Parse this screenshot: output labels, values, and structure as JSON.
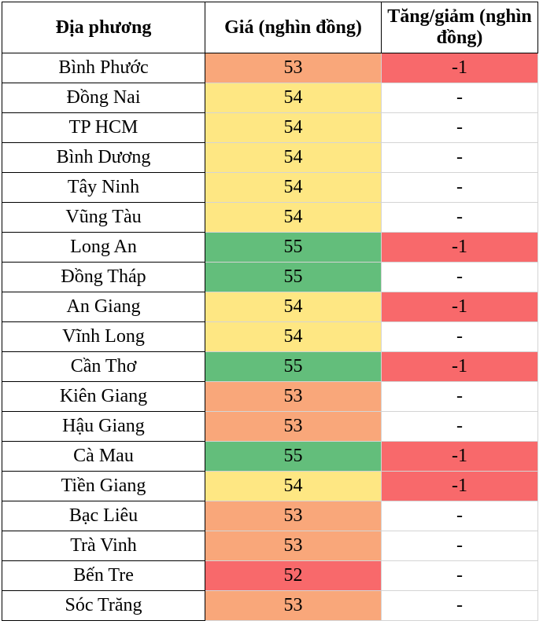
{
  "table": {
    "headers": [
      "Địa phương",
      "Giá (nghìn đồng)",
      "Tăng/giảm (nghìn đồng)"
    ],
    "rows": [
      {
        "region": "Bình Phước",
        "price": "53",
        "change": "-1"
      },
      {
        "region": "Đồng Nai",
        "price": "54",
        "change": "-"
      },
      {
        "region": "TP HCM",
        "price": "54",
        "change": "-"
      },
      {
        "region": "Bình Dương",
        "price": "54",
        "change": "-"
      },
      {
        "region": "Tây Ninh",
        "price": "54",
        "change": "-"
      },
      {
        "region": "Vũng Tàu",
        "price": "54",
        "change": "-"
      },
      {
        "region": "Long An",
        "price": "55",
        "change": "-1"
      },
      {
        "region": "Đồng Tháp",
        "price": "55",
        "change": "-"
      },
      {
        "region": "An Giang",
        "price": "54",
        "change": "-1"
      },
      {
        "region": "Vĩnh Long",
        "price": "54",
        "change": "-"
      },
      {
        "region": "Cần Thơ",
        "price": "55",
        "change": "-1"
      },
      {
        "region": "Kiên Giang",
        "price": "53",
        "change": "-"
      },
      {
        "region": "Hậu Giang",
        "price": "53",
        "change": "-"
      },
      {
        "region": "Cà Mau",
        "price": "55",
        "change": "-1"
      },
      {
        "region": "Tiền Giang",
        "price": "54",
        "change": "-1"
      },
      {
        "region": "Bạc Liêu",
        "price": "53",
        "change": "-"
      },
      {
        "region": "Trà Vinh",
        "price": "53",
        "change": "-"
      },
      {
        "region": "Bến Tre",
        "price": "52",
        "change": "-"
      },
      {
        "region": "Sóc Trăng",
        "price": "53",
        "change": "-"
      }
    ]
  },
  "colors": {
    "price_52": "#f8696b",
    "price_53": "#f9a77a",
    "price_54": "#fee783",
    "price_55": "#63be7b",
    "change_decrease": "#f8696b",
    "change_none": "#ffffff"
  }
}
